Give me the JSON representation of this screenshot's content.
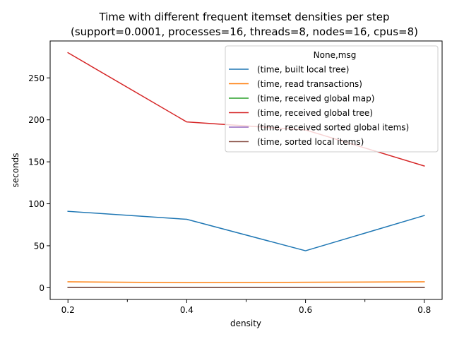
{
  "chart_data": {
    "type": "line",
    "title_line1": "Time with different frequent itemset densities per step",
    "title_line2": "(support=0.0001, processes=16, threads=8, nodes=16, cpus=8)",
    "xlabel": "density",
    "ylabel": "seconds",
    "x": [
      0.2,
      0.4,
      0.6,
      0.8
    ],
    "x_tick_labels": [
      "0.2",
      "0.4",
      "0.6",
      "0.8"
    ],
    "x_minor_ticks": [
      0.3,
      0.5,
      0.7
    ],
    "xlim": [
      0.17,
      0.83
    ],
    "ylim": [
      -14,
      294
    ],
    "y_ticks": [
      0,
      50,
      100,
      150,
      200,
      250
    ],
    "legend_title": "None,msg",
    "legend_position": "top-right",
    "grid": false,
    "series": [
      {
        "name": "(time, built local tree)",
        "color": "#1f77b4",
        "values": [
          91,
          81.5,
          44,
          86
        ]
      },
      {
        "name": "(time, read transactions)",
        "color": "#ff7f0e",
        "values": [
          7,
          6,
          6.5,
          7
        ]
      },
      {
        "name": "(time, received global map)",
        "color": "#2ca02c",
        "values": [
          0.5,
          0.5,
          0.5,
          0.5
        ]
      },
      {
        "name": "(time, received global tree)",
        "color": "#d62728",
        "values": [
          280,
          197.5,
          188,
          145
        ]
      },
      {
        "name": "(time, received sorted global items)",
        "color": "#9467bd",
        "values": [
          0.3,
          0.3,
          0.3,
          0.3
        ]
      },
      {
        "name": "(time, sorted local items)",
        "color": "#8c564b",
        "values": [
          0.2,
          0.2,
          0.2,
          0.2
        ]
      }
    ]
  }
}
